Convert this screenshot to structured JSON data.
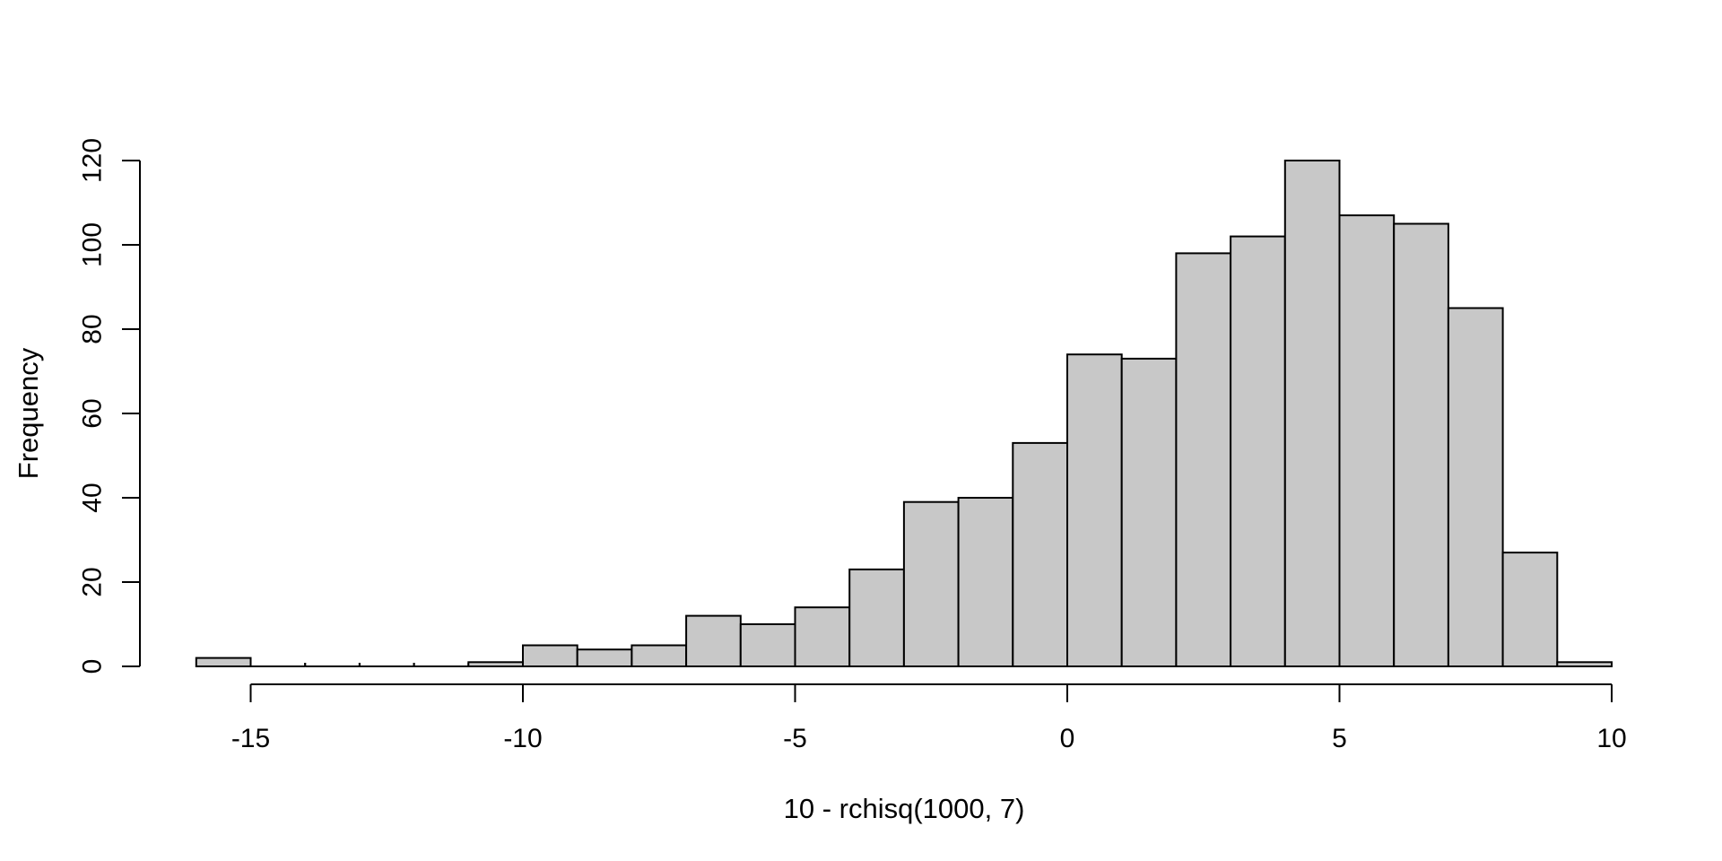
{
  "chart_data": {
    "type": "bar",
    "subtype": "histogram",
    "xlabel": "10 - rchisq(1000, 7)",
    "ylabel": "Frequency",
    "bin_start": -16,
    "bin_width": 1,
    "categories": [
      "[-16,-15]",
      "[-15,-14]",
      "[-14,-13]",
      "[-13,-12]",
      "[-12,-11]",
      "[-11,-10]",
      "[-10,-9]",
      "[-9,-8]",
      "[-8,-7]",
      "[-7,-6]",
      "[-6,-5]",
      "[-5,-4]",
      "[-4,-3]",
      "[-3,-2]",
      "[-2,-1]",
      "[-1,0]",
      "[0,1]",
      "[1,2]",
      "[2,3]",
      "[3,4]",
      "[4,5]",
      "[5,6]",
      "[6,7]",
      "[7,8]",
      "[8,9]",
      "[9,10]"
    ],
    "values": [
      2,
      0,
      0,
      0,
      0,
      1,
      5,
      4,
      5,
      12,
      10,
      14,
      23,
      39,
      40,
      53,
      74,
      73,
      98,
      102,
      120,
      107,
      105,
      85,
      27,
      1
    ],
    "total_n": 1000,
    "x_ticks": [
      -15,
      -10,
      -5,
      0,
      5,
      10
    ],
    "x_tick_labels": [
      "-15",
      "-10",
      "-5",
      "0",
      "5",
      "10"
    ],
    "y_ticks": [
      0,
      20,
      40,
      60,
      80,
      100,
      120
    ],
    "y_tick_labels": [
      "0",
      "20",
      "40",
      "60",
      "80",
      "100",
      "120"
    ],
    "xlim": [
      -16,
      10
    ],
    "ylim": [
      0,
      120
    ],
    "grid": false,
    "legend": "none",
    "bar_fill": "#C8C8C8",
    "bar_border": "#000000",
    "axis_color": "#000000",
    "background": "#FFFFFF"
  }
}
